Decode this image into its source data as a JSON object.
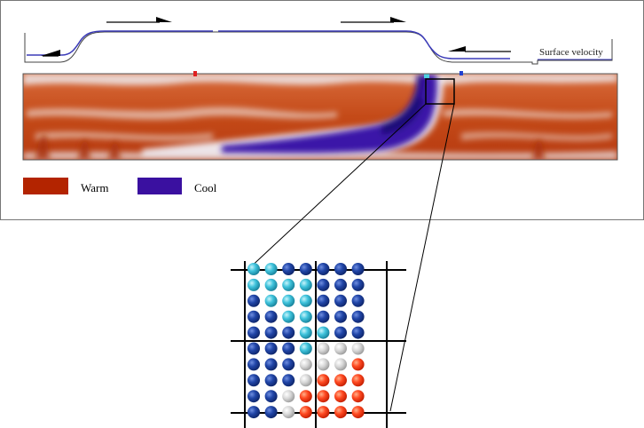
{
  "labels": {
    "surface_velocity": "Surface velocity",
    "warm": "Warm",
    "cool": "Cool"
  },
  "colors": {
    "warm": "#b32400",
    "cool": "#3a10a0",
    "velocity_line": "#3b3bb8",
    "frame": "#555555",
    "particle_cyan": "#3fc3dc",
    "particle_blue": "#1c3d9c",
    "particle_grey": "#d4d4d4",
    "particle_red": "#ff4020"
  },
  "zoom_grid": {
    "rows": [
      "CCBBBBB",
      "CCCCBBB",
      "BCCCBBB",
      "BBCCBBB",
      "BBBCCBB",
      "BBBCGGG",
      "BBBGGGR",
      "BBBGRRR",
      "BBGRRRR",
      "BBGRRRR"
    ]
  }
}
